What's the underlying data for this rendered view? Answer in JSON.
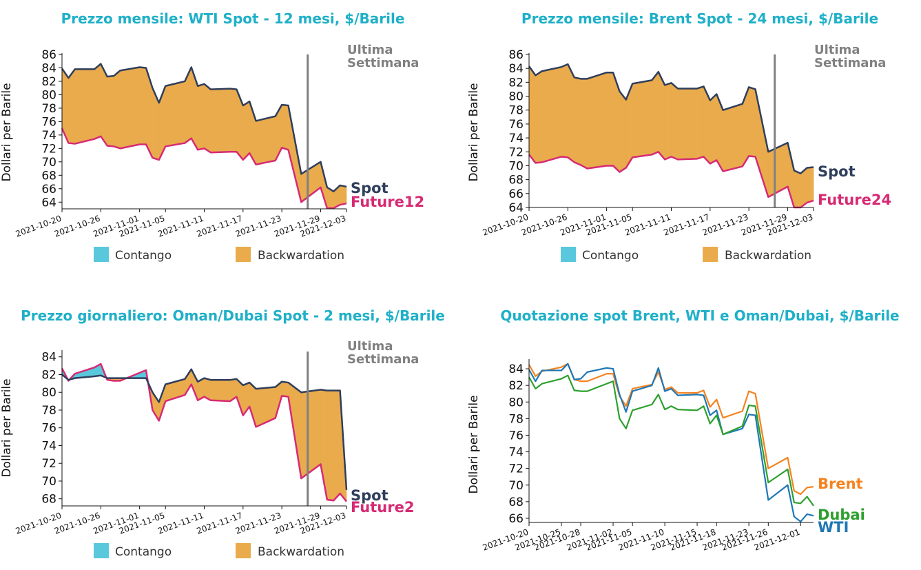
{
  "colors": {
    "title": "#1fb0c8",
    "spot": "#2f3e5c",
    "future": "#d62a73",
    "backwardation": "#e9ab4c",
    "contango": "#5ac8dc",
    "annotation": "#808080",
    "brent": "#f5821f",
    "wti": "#1f77b4",
    "dubai": "#2ca02c"
  },
  "chart_data": [
    {
      "type": "area",
      "title": "Prezzo mensile: WTI Spot - 12 mesi, $/Barile",
      "ylabel": "Dollari per Barile",
      "ylim": [
        63,
        86
      ],
      "yticks": [
        64,
        66,
        68,
        70,
        72,
        74,
        76,
        78,
        80,
        82,
        84,
        86
      ],
      "xlim": [
        "2021-10-20",
        "2021-12-03"
      ],
      "xticks": [
        "2021-10-20",
        "2021-10-26",
        "2021-11-01",
        "2021-11-05",
        "2021-11-11",
        "2021-11-17",
        "2021-11-23",
        "2021-11-29",
        "2021-12-03"
      ],
      "x": [
        "2021-10-20",
        "2021-10-21",
        "2021-10-22",
        "2021-10-25",
        "2021-10-26",
        "2021-10-27",
        "2021-10-28",
        "2021-10-29",
        "2021-11-01",
        "2021-11-02",
        "2021-11-03",
        "2021-11-04",
        "2021-11-05",
        "2021-11-08",
        "2021-11-09",
        "2021-11-10",
        "2021-11-11",
        "2021-11-12",
        "2021-11-15",
        "2021-11-16",
        "2021-11-17",
        "2021-11-18",
        "2021-11-19",
        "2021-11-22",
        "2021-11-23",
        "2021-11-24",
        "2021-11-26",
        "2021-11-29",
        "2021-11-30",
        "2021-12-01",
        "2021-12-02",
        "2021-12-03"
      ],
      "series": [
        {
          "name": "Spot",
          "values": [
            83.9,
            82.5,
            83.8,
            83.8,
            84.6,
            82.7,
            82.8,
            83.6,
            84.1,
            84.0,
            81.0,
            78.8,
            81.3,
            82.0,
            84.1,
            81.3,
            81.6,
            80.8,
            80.9,
            80.8,
            78.4,
            79.0,
            76.1,
            76.8,
            78.5,
            78.4,
            68.2,
            70.0,
            66.2,
            65.6,
            66.5,
            66.3
          ]
        },
        {
          "name": "Future12",
          "values": [
            75.0,
            72.8,
            72.7,
            73.4,
            73.8,
            72.4,
            72.3,
            72.0,
            72.6,
            72.6,
            70.6,
            70.3,
            72.3,
            72.8,
            73.5,
            71.8,
            72.0,
            71.4,
            71.5,
            71.5,
            70.3,
            71.3,
            69.6,
            70.2,
            72.1,
            71.8,
            64.0,
            66.2,
            63.1,
            63.1,
            63.6,
            63.8
          ]
        }
      ],
      "annotation": [
        "Ultima",
        "Settimana"
      ],
      "marker_x": "2021-11-27",
      "labels": {
        "spot": "Spot",
        "future": "Future12"
      },
      "legend": [
        "Contango",
        "Backwardation"
      ]
    },
    {
      "type": "area",
      "title": "Prezzo mensile: Brent Spot - 24 mesi, $/Barile",
      "ylabel": "Dollari per Barile",
      "ylim": [
        64,
        86
      ],
      "yticks": [
        64,
        66,
        68,
        70,
        72,
        74,
        76,
        78,
        80,
        82,
        84,
        86
      ],
      "xlim": [
        "2021-10-20",
        "2021-12-03"
      ],
      "xticks": [
        "2021-10-20",
        "2021-10-26",
        "2021-11-01",
        "2021-11-05",
        "2021-11-11",
        "2021-11-17",
        "2021-11-23",
        "2021-11-29",
        "2021-12-03"
      ],
      "x": [
        "2021-10-20",
        "2021-10-21",
        "2021-10-22",
        "2021-10-25",
        "2021-10-26",
        "2021-10-27",
        "2021-10-28",
        "2021-10-29",
        "2021-11-01",
        "2021-11-02",
        "2021-11-03",
        "2021-11-04",
        "2021-11-05",
        "2021-11-08",
        "2021-11-09",
        "2021-11-10",
        "2021-11-11",
        "2021-11-12",
        "2021-11-15",
        "2021-11-16",
        "2021-11-17",
        "2021-11-18",
        "2021-11-19",
        "2021-11-22",
        "2021-11-23",
        "2021-11-24",
        "2021-11-26",
        "2021-11-29",
        "2021-11-30",
        "2021-12-01",
        "2021-12-02",
        "2021-12-03"
      ],
      "series": [
        {
          "name": "Spot",
          "values": [
            84.3,
            83.0,
            83.6,
            84.2,
            84.6,
            82.7,
            82.5,
            82.5,
            83.4,
            83.4,
            80.7,
            79.5,
            81.8,
            82.3,
            83.5,
            81.6,
            81.9,
            81.1,
            81.1,
            81.4,
            79.4,
            80.3,
            78.0,
            78.9,
            81.3,
            81.0,
            72.0,
            73.3,
            69.3,
            68.9,
            69.7,
            69.8
          ]
        },
        {
          "name": "Future24",
          "values": [
            71.6,
            70.4,
            70.5,
            71.3,
            71.2,
            70.5,
            70.1,
            69.6,
            70.0,
            70.0,
            69.1,
            69.7,
            71.2,
            71.6,
            72.0,
            70.9,
            71.3,
            70.9,
            71.0,
            71.3,
            70.3,
            70.8,
            69.2,
            69.9,
            71.4,
            71.3,
            65.5,
            67.0,
            64.0,
            64.0,
            64.7,
            65.0
          ]
        }
      ],
      "annotation": [
        "Ultima",
        "Settimana"
      ],
      "marker_x": "2021-11-27",
      "labels": {
        "spot": "Spot",
        "future": "Future24"
      },
      "legend": [
        "Contango",
        "Backwardation"
      ]
    },
    {
      "type": "area",
      "title": "Prezzo giornaliero: Oman/Dubai Spot - 2 mesi, $/Barile",
      "ylabel": "Dollari per Barile",
      "ylim": [
        67.2,
        84.6
      ],
      "yticks": [
        68,
        70,
        72,
        74,
        76,
        78,
        80,
        82,
        84
      ],
      "xlim": [
        "2021-10-20",
        "2021-12-03"
      ],
      "xticks": [
        "2021-10-20",
        "2021-10-26",
        "2021-11-01",
        "2021-11-05",
        "2021-11-11",
        "2021-11-17",
        "2021-11-23",
        "2021-11-29",
        "2021-12-03"
      ],
      "x": [
        "2021-10-20",
        "2021-10-21",
        "2021-10-22",
        "2021-10-25",
        "2021-10-26",
        "2021-10-27",
        "2021-10-28",
        "2021-10-29",
        "2021-11-01",
        "2021-11-02",
        "2021-11-03",
        "2021-11-04",
        "2021-11-05",
        "2021-11-08",
        "2021-11-09",
        "2021-11-10",
        "2021-11-11",
        "2021-11-12",
        "2021-11-15",
        "2021-11-16",
        "2021-11-17",
        "2021-11-18",
        "2021-11-19",
        "2021-11-22",
        "2021-11-23",
        "2021-11-24",
        "2021-11-26",
        "2021-11-29",
        "2021-11-30",
        "2021-12-01",
        "2021-12-02",
        "2021-12-03"
      ],
      "series": [
        {
          "name": "Spot",
          "values": [
            82.0,
            81.4,
            81.6,
            81.8,
            81.9,
            81.6,
            81.6,
            81.6,
            81.6,
            81.6,
            80.0,
            78.9,
            80.9,
            81.5,
            82.6,
            81.2,
            81.6,
            81.4,
            81.4,
            81.5,
            80.8,
            81.1,
            80.4,
            80.6,
            81.2,
            81.1,
            80.0,
            80.3,
            80.2,
            80.2,
            80.2,
            69.0
          ]
        },
        {
          "name": "Future2",
          "values": [
            82.7,
            81.3,
            82.1,
            82.8,
            83.2,
            81.4,
            81.3,
            81.3,
            82.2,
            82.5,
            78.0,
            76.8,
            79.0,
            79.7,
            80.9,
            79.1,
            79.5,
            79.1,
            79.0,
            79.5,
            77.4,
            78.4,
            76.1,
            77.1,
            79.6,
            79.5,
            70.3,
            71.9,
            67.9,
            67.8,
            68.6,
            67.7
          ]
        }
      ],
      "annotation": [
        "Ultima",
        "Settimana"
      ],
      "marker_x": "2021-11-27",
      "labels": {
        "spot": "Spot",
        "future": "Future2"
      },
      "legend": [
        "Contango",
        "Backwardation"
      ]
    },
    {
      "type": "line",
      "title": "Quotazione spot Brent, WTI e Oman/Dubai, $/Barile",
      "ylabel": "Dollari per Barile",
      "ylim": [
        65.5,
        85
      ],
      "yticks": [
        66,
        68,
        70,
        72,
        74,
        76,
        78,
        80,
        82,
        84
      ],
      "xlim": [
        "2021-10-20",
        "2021-12-03"
      ],
      "xticks": [
        "2021-10-20",
        "2021-10-25",
        "2021-10-28",
        "2021-11-02",
        "2021-11-05",
        "2021-11-10",
        "2021-11-15",
        "2021-11-18",
        "2021-11-23",
        "2021-11-26",
        "2021-12-01"
      ],
      "x": [
        "2021-10-20",
        "2021-10-21",
        "2021-10-22",
        "2021-10-25",
        "2021-10-26",
        "2021-10-27",
        "2021-10-28",
        "2021-10-29",
        "2021-11-01",
        "2021-11-02",
        "2021-11-03",
        "2021-11-04",
        "2021-11-05",
        "2021-11-08",
        "2021-11-09",
        "2021-11-10",
        "2021-11-11",
        "2021-11-12",
        "2021-11-15",
        "2021-11-16",
        "2021-11-17",
        "2021-11-18",
        "2021-11-19",
        "2021-11-22",
        "2021-11-23",
        "2021-11-24",
        "2021-11-26",
        "2021-11-29",
        "2021-11-30",
        "2021-12-01",
        "2021-12-02",
        "2021-12-03"
      ],
      "series": [
        {
          "name": "Brent",
          "values": [
            84.5,
            83.1,
            83.7,
            84.2,
            84.6,
            82.7,
            82.5,
            82.5,
            83.4,
            83.4,
            80.7,
            79.5,
            81.6,
            82.1,
            83.6,
            81.5,
            81.8,
            81.1,
            81.1,
            81.4,
            79.4,
            80.3,
            78.1,
            78.9,
            81.3,
            81.0,
            72.0,
            73.3,
            69.3,
            68.9,
            69.7,
            69.8
          ]
        },
        {
          "name": "WTI",
          "values": [
            83.9,
            82.5,
            83.8,
            83.8,
            84.6,
            82.7,
            82.8,
            83.6,
            84.1,
            84.0,
            80.9,
            78.8,
            81.3,
            82.0,
            84.1,
            81.3,
            81.6,
            80.8,
            80.9,
            80.8,
            78.4,
            79.0,
            76.1,
            76.8,
            78.5,
            78.4,
            68.2,
            70.0,
            66.2,
            65.6,
            66.5,
            66.3
          ]
        },
        {
          "name": "Dubai",
          "values": [
            83.0,
            81.6,
            82.2,
            82.8,
            83.2,
            81.4,
            81.3,
            81.3,
            82.2,
            82.5,
            78.0,
            76.8,
            79.0,
            79.7,
            80.9,
            79.1,
            79.5,
            79.1,
            79.0,
            79.5,
            77.4,
            78.4,
            76.1,
            77.1,
            79.6,
            79.5,
            70.3,
            71.9,
            67.9,
            67.8,
            68.6,
            67.5
          ]
        }
      ]
    }
  ]
}
